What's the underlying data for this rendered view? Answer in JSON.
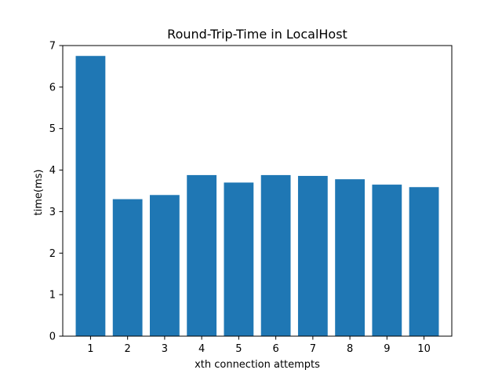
{
  "chart_data": {
    "type": "bar",
    "title": "Round-Trip-Time in LocalHost",
    "xlabel": "xth connection attempts",
    "ylabel": "time(ms)",
    "categories": [
      "1",
      "2",
      "3",
      "4",
      "5",
      "6",
      "7",
      "8",
      "9",
      "10"
    ],
    "values": [
      6.75,
      3.3,
      3.4,
      3.88,
      3.7,
      3.88,
      3.86,
      3.78,
      3.65,
      3.59
    ],
    "ylim": [
      0,
      7
    ],
    "yticks": [
      "0",
      "1",
      "2",
      "3",
      "4",
      "5",
      "6",
      "7"
    ],
    "grid": false,
    "legend": "none",
    "bar_color": "#1f77b4"
  }
}
